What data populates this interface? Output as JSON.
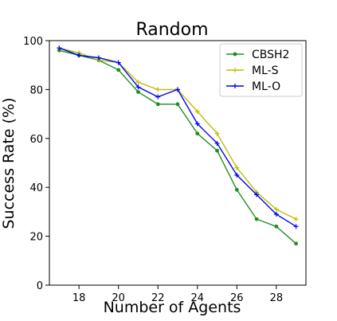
{
  "chart_data": {
    "type": "line",
    "title": "Random",
    "xlabel": "Number of Agents",
    "ylabel": "Success Rate (%)",
    "xlim": [
      16.5,
      29.5
    ],
    "ylim": [
      0,
      100
    ],
    "xticks": [
      18,
      20,
      22,
      24,
      26,
      28
    ],
    "yticks": [
      0,
      20,
      40,
      60,
      80,
      100
    ],
    "grid": false,
    "legend_position": "top-right",
    "x": [
      17,
      18,
      19,
      20,
      21,
      22,
      23,
      24,
      25,
      26,
      27,
      28,
      29
    ],
    "series": [
      {
        "name": "CBSH2",
        "color": "#1f8f1f",
        "marker": "dot",
        "values": [
          96,
          94,
          92,
          88,
          79,
          74,
          74,
          62,
          55,
          39,
          27,
          24,
          17
        ]
      },
      {
        "name": "ML-S",
        "color": "#bfbf00",
        "marker": "plus",
        "values": [
          97,
          95,
          92,
          91,
          83,
          80,
          80,
          71,
          62,
          48,
          38,
          31,
          27
        ]
      },
      {
        "name": "ML-O",
        "color": "#0000ff",
        "marker": "plus",
        "values": [
          97,
          94,
          93,
          91,
          81,
          77,
          80,
          66,
          58,
          45,
          37,
          29,
          24
        ]
      }
    ]
  }
}
